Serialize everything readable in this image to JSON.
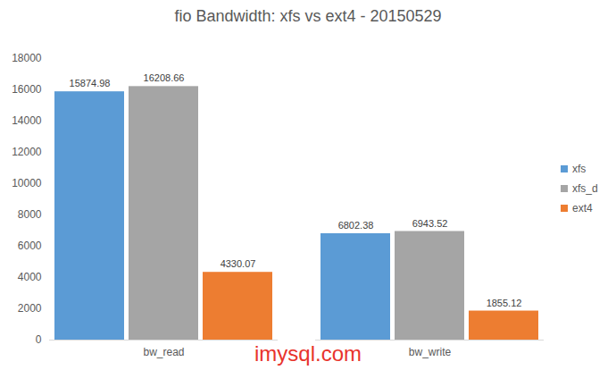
{
  "chart_data": {
    "type": "bar",
    "title": "fio Bandwidth: xfs vs ext4 - 20150529",
    "categories": [
      "bw_read",
      "bw_write"
    ],
    "series": [
      {
        "name": "xfs",
        "color": "#5b9bd5",
        "values": [
          15874.98,
          6802.38
        ]
      },
      {
        "name": "xfs_d",
        "color": "#a5a5a5",
        "values": [
          16208.66,
          6943.52
        ]
      },
      {
        "name": "ext4",
        "color": "#ed7d31",
        "values": [
          4330.07,
          1855.12
        ]
      }
    ],
    "ylim": [
      0,
      18000
    ],
    "yticks": [
      0,
      2000,
      4000,
      6000,
      8000,
      10000,
      12000,
      14000,
      16000,
      18000
    ],
    "grid": false,
    "legend": "right",
    "data_labels": true,
    "annotations": [
      "imysql.com"
    ]
  }
}
